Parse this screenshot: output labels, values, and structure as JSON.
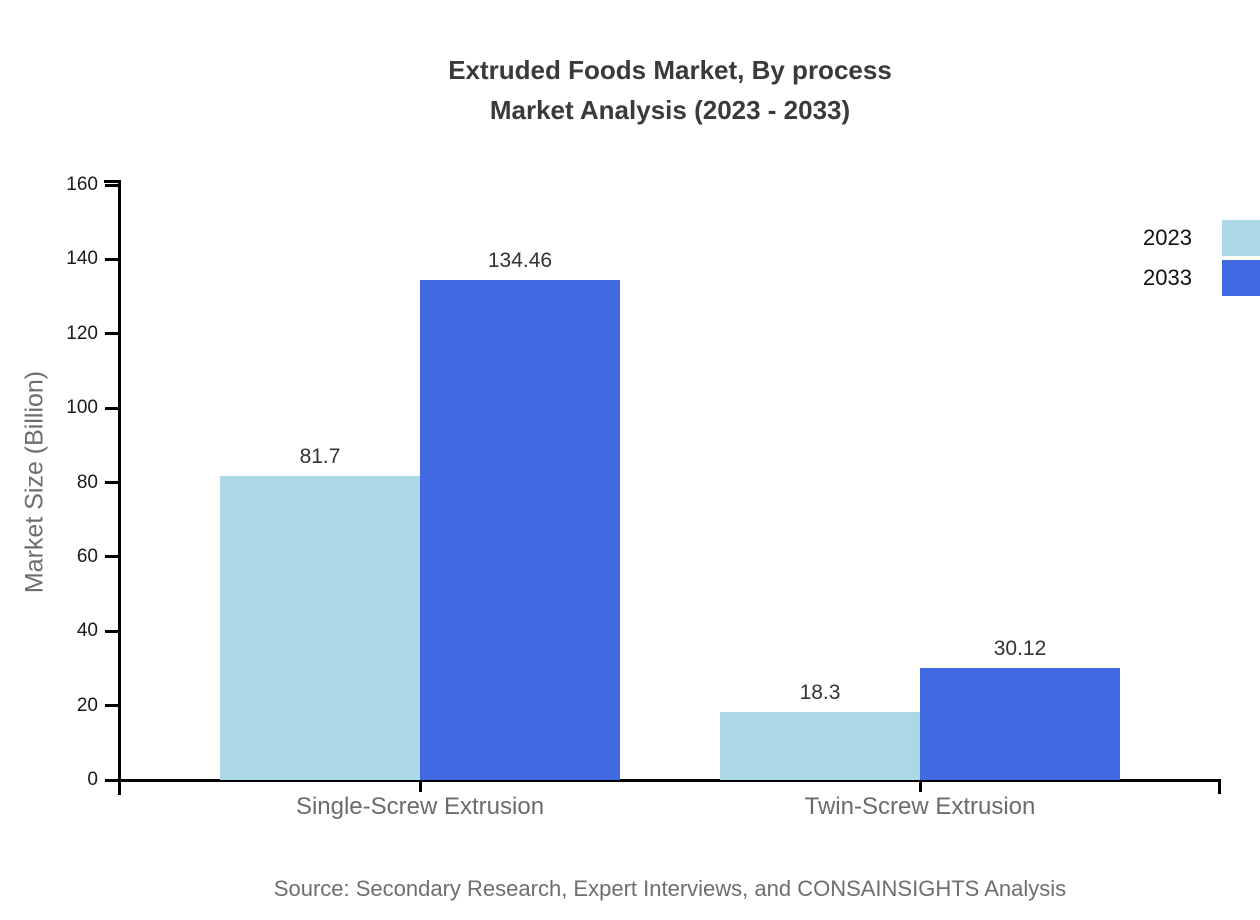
{
  "chart_data": {
    "type": "bar",
    "title_line1": "Extruded Foods Market, By process",
    "title_line2": "Market Analysis (2023 - 2033)",
    "ylabel": "Market Size (Billion)",
    "categories": [
      "Single-Screw Extrusion",
      "Twin-Screw Extrusion"
    ],
    "series": [
      {
        "name": "2023",
        "color": "#ADD8E6",
        "values": [
          81.7,
          18.3
        ]
      },
      {
        "name": "2033",
        "color": "#4169E1",
        "values": [
          134.46,
          30.12
        ]
      }
    ],
    "ylim": [
      0,
      160
    ],
    "yticks": [
      0,
      20,
      40,
      60,
      80,
      100,
      120,
      140,
      160
    ],
    "grid": false,
    "legend_position": "right",
    "axis_color": "#000000",
    "source": "Source: Secondary Research, Expert Interviews, and CONSAINSIGHTS Analysis"
  }
}
